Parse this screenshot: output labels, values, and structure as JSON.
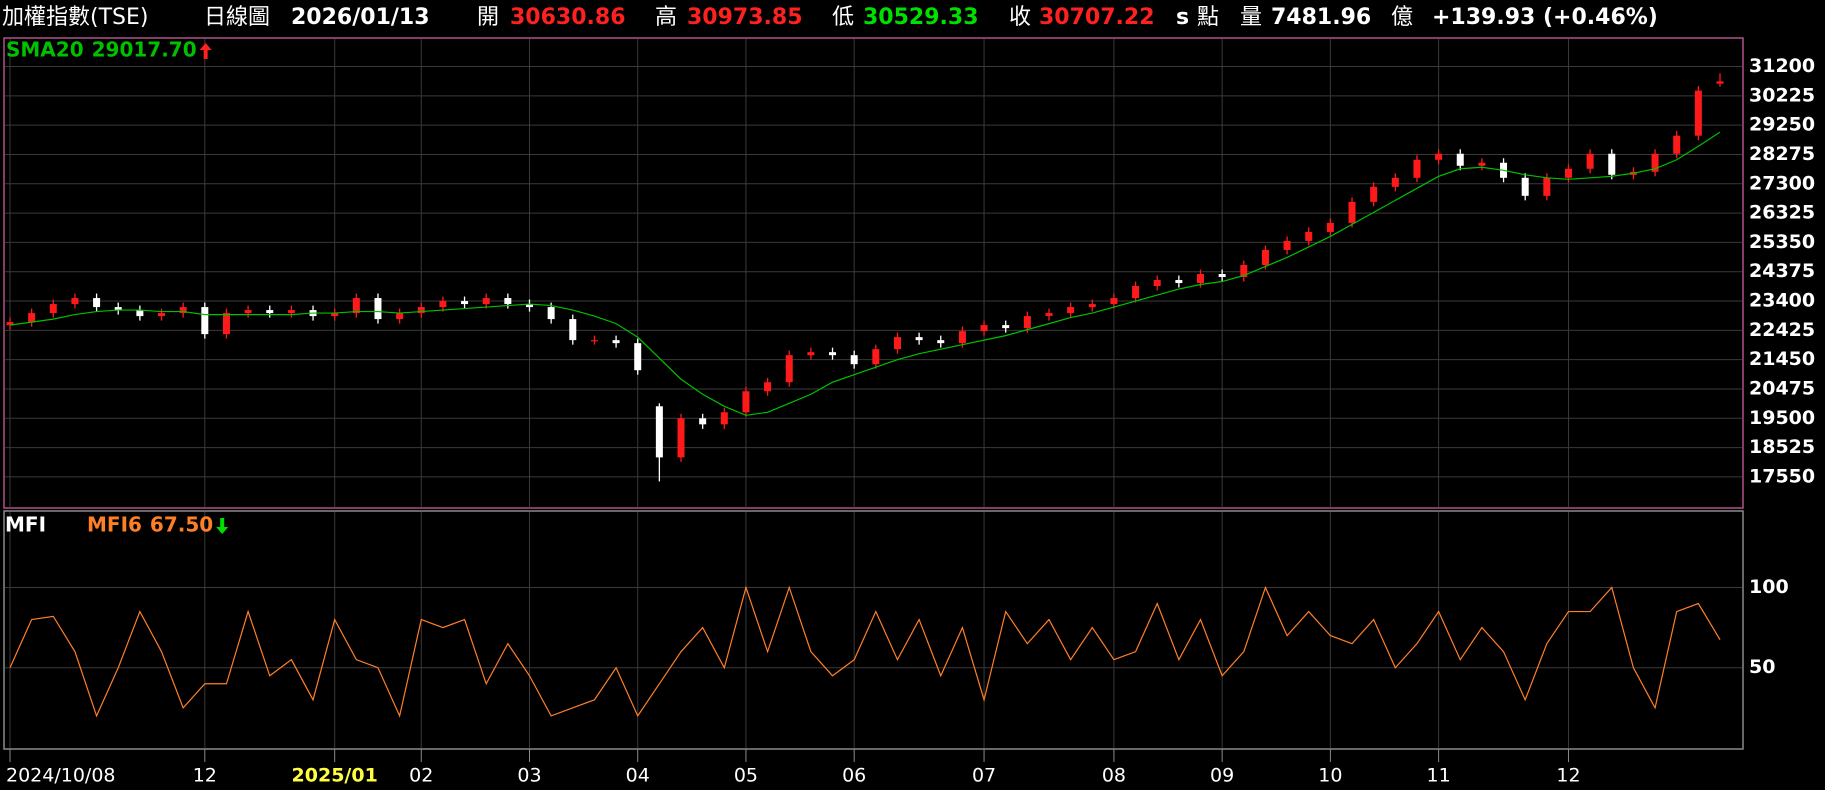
{
  "header": {
    "name": "加權指數(TSE)",
    "period": "日線圖",
    "date": "2026/01/13",
    "open_label": "開",
    "open": "30630.86",
    "high_label": "高",
    "high": "30973.85",
    "low_label": "低",
    "low": "30529.33",
    "close_label": "收",
    "close": "30707.22",
    "close_flag": "s",
    "unit": "點",
    "volume_label": "量",
    "volume": "7481.96",
    "volume_unit": "億",
    "change": "+139.93 (+0.46%)"
  },
  "chart_data": [
    {
      "type": "candlestick",
      "up_color": "#ff1a1a",
      "down_color": "#ffffff",
      "grid": true,
      "categories": [
        "2024/10/08",
        null,
        null,
        null,
        null,
        null,
        null,
        null,
        null,
        "12",
        null,
        null,
        null,
        null,
        null,
        "2025/01",
        null,
        null,
        null,
        "02",
        null,
        null,
        null,
        null,
        "03",
        null,
        null,
        null,
        null,
        "04",
        null,
        null,
        null,
        null,
        "05",
        null,
        null,
        null,
        null,
        "06",
        null,
        null,
        null,
        null,
        null,
        "07",
        null,
        null,
        null,
        null,
        null,
        "08",
        null,
        null,
        null,
        null,
        "09",
        null,
        null,
        null,
        null,
        "10",
        null,
        null,
        null,
        null,
        "11",
        null,
        null,
        null,
        null,
        null,
        "12",
        null,
        null,
        null,
        null,
        null,
        null,
        null
      ],
      "open": [
        22600,
        22700,
        23000,
        23300,
        23500,
        23200,
        23100,
        22900,
        23000,
        23200,
        22300,
        23000,
        23100,
        23000,
        23100,
        22900,
        23000,
        23500,
        22800,
        23000,
        23200,
        23400,
        23300,
        23500,
        23300,
        23200,
        22800,
        22100,
        22100,
        22000,
        19900,
        18200,
        19500,
        19300,
        19700,
        20400,
        20700,
        21600,
        21700,
        21600,
        21300,
        21800,
        22200,
        22100,
        22000,
        22400,
        22600,
        22500,
        22900,
        23000,
        23200,
        23300,
        23500,
        23900,
        24100,
        24000,
        24300,
        24200,
        24600,
        25100,
        25400,
        25700,
        26000,
        26700,
        27200,
        27500,
        28100,
        28300,
        27900,
        28000,
        27500,
        26900,
        27500,
        27800,
        28300,
        27600,
        27700,
        28300,
        28900,
        30630.86
      ],
      "high": [
        22850,
        23150,
        23450,
        23650,
        23650,
        23350,
        23250,
        23150,
        23350,
        23350,
        23150,
        23250,
        23250,
        23250,
        23250,
        23150,
        23650,
        23650,
        23150,
        23350,
        23550,
        23550,
        23650,
        23650,
        23450,
        23350,
        22950,
        22250,
        22250,
        22150,
        20000,
        19650,
        19650,
        19850,
        20550,
        20850,
        21750,
        21850,
        21850,
        21750,
        21950,
        22350,
        22350,
        22250,
        22550,
        22750,
        22750,
        23050,
        23150,
        23350,
        23450,
        23650,
        24050,
        24250,
        24250,
        24450,
        24450,
        24750,
        25250,
        25550,
        25850,
        26150,
        26850,
        27350,
        27650,
        28250,
        28450,
        28450,
        28150,
        28150,
        27650,
        27650,
        27950,
        28450,
        28450,
        27850,
        28450,
        29050,
        30550,
        30973.85
      ],
      "low": [
        22450,
        22550,
        22850,
        23150,
        23050,
        22950,
        22750,
        22750,
        22850,
        22150,
        22150,
        22850,
        22850,
        22850,
        22750,
        22750,
        22850,
        22650,
        22650,
        22850,
        23050,
        23150,
        23150,
        23150,
        23050,
        22650,
        21950,
        21950,
        21850,
        20950,
        17400,
        18050,
        19150,
        19150,
        19550,
        20250,
        20550,
        21450,
        21450,
        21150,
        21150,
        21650,
        21950,
        21850,
        21850,
        22250,
        22350,
        22350,
        22750,
        22850,
        23050,
        23150,
        23350,
        23750,
        23850,
        23850,
        24050,
        24050,
        24450,
        24950,
        25250,
        25550,
        25850,
        26550,
        27050,
        27350,
        27950,
        27750,
        27750,
        27350,
        26750,
        26750,
        27350,
        27650,
        27450,
        27450,
        27550,
        28150,
        28750,
        30529.33
      ],
      "close": [
        22700,
        23000,
        23300,
        23500,
        23200,
        23100,
        22900,
        23000,
        23200,
        22300,
        23000,
        23100,
        23000,
        23100,
        22900,
        23000,
        23500,
        22800,
        23000,
        23200,
        23400,
        23300,
        23500,
        23300,
        23200,
        22800,
        22100,
        22100,
        22000,
        21100,
        18200,
        19500,
        19300,
        19700,
        20400,
        20700,
        21600,
        21700,
        21600,
        21300,
        21800,
        22200,
        22100,
        22000,
        22400,
        22600,
        22500,
        22900,
        23000,
        23200,
        23300,
        23500,
        23900,
        24100,
        24000,
        24300,
        24200,
        24600,
        25100,
        25400,
        25700,
        26000,
        26700,
        27200,
        27500,
        28100,
        28300,
        27900,
        28000,
        27500,
        26900,
        27500,
        27800,
        28300,
        27600,
        27700,
        28300,
        28900,
        30400,
        30707.22
      ],
      "series": [
        {
          "name": "SMA20",
          "color": "#00c000",
          "value_label": "29017.70",
          "values": [
            22600,
            22700,
            22800,
            22950,
            23050,
            23100,
            23100,
            23050,
            23050,
            22950,
            22950,
            22950,
            22950,
            22950,
            23000,
            23000,
            23050,
            23050,
            23000,
            23050,
            23100,
            23150,
            23200,
            23250,
            23300,
            23250,
            23100,
            22900,
            22650,
            22200,
            21500,
            20800,
            20300,
            19900,
            19600,
            19700,
            20000,
            20300,
            20700,
            20950,
            21200,
            21450,
            21650,
            21800,
            21950,
            22100,
            22250,
            22450,
            22650,
            22850,
            23000,
            23200,
            23400,
            23600,
            23800,
            23950,
            24050,
            24250,
            24550,
            24850,
            25200,
            25550,
            25950,
            26350,
            26750,
            27150,
            27550,
            27800,
            27850,
            27750,
            27600,
            27500,
            27450,
            27500,
            27550,
            27650,
            27800,
            28100,
            28550,
            29017.7
          ]
        }
      ],
      "ylim": [
        16550,
        32050
      ],
      "yticks": [
        31200,
        30225,
        29250,
        28275,
        27300,
        26325,
        25350,
        24375,
        23400,
        22425,
        21450,
        20475,
        19500,
        18525,
        17550
      ]
    },
    {
      "type": "line",
      "title": "MFI",
      "grid": true,
      "series": [
        {
          "name": "MFI6",
          "color": "#ff7f27",
          "value_label": "67.50",
          "values": [
            50,
            80,
            82,
            60,
            20,
            50,
            85,
            60,
            25,
            40,
            40,
            85,
            45,
            55,
            30,
            80,
            55,
            50,
            20,
            80,
            75,
            80,
            40,
            65,
            45,
            20,
            25,
            30,
            50,
            20,
            40,
            60,
            75,
            50,
            100,
            60,
            100,
            60,
            45,
            55,
            85,
            55,
            80,
            45,
            75,
            30,
            85,
            65,
            80,
            55,
            75,
            55,
            60,
            90,
            55,
            80,
            45,
            60,
            100,
            70,
            85,
            70,
            65,
            80,
            50,
            65,
            85,
            55,
            75,
            60,
            30,
            65,
            85,
            85,
            100,
            50,
            25,
            85,
            90,
            67.5
          ]
        }
      ],
      "ylim": [
        0,
        147
      ],
      "yticks": [
        50,
        100
      ]
    }
  ]
}
